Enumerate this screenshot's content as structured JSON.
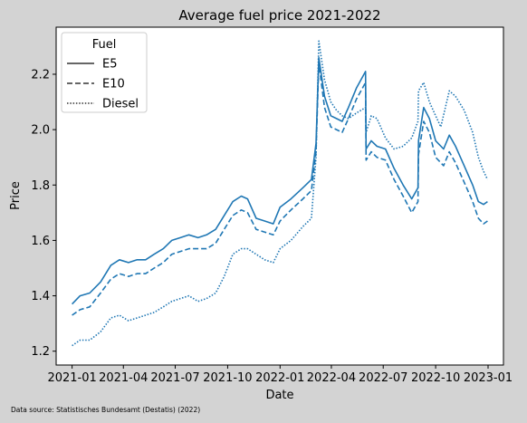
{
  "chart_data": {
    "type": "line",
    "title": "Average fuel price 2021-2022",
    "xlabel": "Date",
    "ylabel": "Price",
    "x_ticks": [
      "2021-01",
      "2021-04",
      "2021-07",
      "2021-10",
      "2022-01",
      "2022-04",
      "2022-07",
      "2022-10",
      "2023-01"
    ],
    "x_tick_dates": [
      "2021-01-01",
      "2021-04-01",
      "2021-07-01",
      "2021-10-01",
      "2022-01-01",
      "2022-04-01",
      "2022-07-01",
      "2022-10-01",
      "2023-01-01"
    ],
    "y_ticks": [
      "1.2",
      "1.4",
      "1.6",
      "1.8",
      "2.0",
      "2.2"
    ],
    "xlim": [
      "2020-12-04",
      "2023-01-28"
    ],
    "ylim": [
      1.15,
      2.37
    ],
    "grid": false,
    "legend": {
      "title": "Fuel",
      "placement": "top-left"
    },
    "series_color": "#1f77b4",
    "series": [
      {
        "name": "E5",
        "style": "solid",
        "points": [
          [
            "2021-01-01",
            1.37
          ],
          [
            "2021-01-15",
            1.4
          ],
          [
            "2021-02-01",
            1.41
          ],
          [
            "2021-02-20",
            1.45
          ],
          [
            "2021-03-10",
            1.51
          ],
          [
            "2021-03-25",
            1.53
          ],
          [
            "2021-04-10",
            1.52
          ],
          [
            "2021-04-25",
            1.53
          ],
          [
            "2021-05-10",
            1.53
          ],
          [
            "2021-05-25",
            1.55
          ],
          [
            "2021-06-10",
            1.57
          ],
          [
            "2021-06-25",
            1.6
          ],
          [
            "2021-07-10",
            1.61
          ],
          [
            "2021-07-25",
            1.62
          ],
          [
            "2021-08-10",
            1.61
          ],
          [
            "2021-08-25",
            1.62
          ],
          [
            "2021-09-10",
            1.64
          ],
          [
            "2021-09-25",
            1.69
          ],
          [
            "2021-10-10",
            1.74
          ],
          [
            "2021-10-25",
            1.76
          ],
          [
            "2021-11-05",
            1.75
          ],
          [
            "2021-11-20",
            1.68
          ],
          [
            "2021-12-05",
            1.67
          ],
          [
            "2021-12-20",
            1.66
          ],
          [
            "2022-01-01",
            1.72
          ],
          [
            "2022-01-20",
            1.75
          ],
          [
            "2022-02-10",
            1.79
          ],
          [
            "2022-02-25",
            1.82
          ],
          [
            "2022-03-05",
            1.95
          ],
          [
            "2022-03-10",
            2.26
          ],
          [
            "2022-03-20",
            2.12
          ],
          [
            "2022-03-31",
            2.05
          ],
          [
            "2022-04-10",
            2.04
          ],
          [
            "2022-04-20",
            2.03
          ],
          [
            "2022-05-01",
            2.08
          ],
          [
            "2022-05-15",
            2.15
          ],
          [
            "2022-05-31",
            2.21
          ],
          [
            "2022-06-01",
            1.93
          ],
          [
            "2022-06-10",
            1.96
          ],
          [
            "2022-06-20",
            1.94
          ],
          [
            "2022-07-05",
            1.93
          ],
          [
            "2022-07-20",
            1.86
          ],
          [
            "2022-08-05",
            1.8
          ],
          [
            "2022-08-20",
            1.75
          ],
          [
            "2022-08-31",
            1.79
          ],
          [
            "2022-09-01",
            1.96
          ],
          [
            "2022-09-10",
            2.08
          ],
          [
            "2022-09-20",
            2.04
          ],
          [
            "2022-10-01",
            1.96
          ],
          [
            "2022-10-15",
            1.93
          ],
          [
            "2022-10-25",
            1.98
          ],
          [
            "2022-11-05",
            1.94
          ],
          [
            "2022-11-20",
            1.87
          ],
          [
            "2022-12-05",
            1.8
          ],
          [
            "2022-12-15",
            1.74
          ],
          [
            "2022-12-24",
            1.73
          ],
          [
            "2022-12-31",
            1.74
          ]
        ]
      },
      {
        "name": "E10",
        "style": "dashed",
        "points": [
          [
            "2021-01-01",
            1.33
          ],
          [
            "2021-01-15",
            1.35
          ],
          [
            "2021-02-01",
            1.36
          ],
          [
            "2021-02-20",
            1.41
          ],
          [
            "2021-03-10",
            1.46
          ],
          [
            "2021-03-25",
            1.48
          ],
          [
            "2021-04-10",
            1.47
          ],
          [
            "2021-04-25",
            1.48
          ],
          [
            "2021-05-10",
            1.48
          ],
          [
            "2021-05-25",
            1.5
          ],
          [
            "2021-06-10",
            1.52
          ],
          [
            "2021-06-25",
            1.55
          ],
          [
            "2021-07-10",
            1.56
          ],
          [
            "2021-07-25",
            1.57
          ],
          [
            "2021-08-10",
            1.57
          ],
          [
            "2021-08-25",
            1.57
          ],
          [
            "2021-09-10",
            1.59
          ],
          [
            "2021-09-25",
            1.64
          ],
          [
            "2021-10-10",
            1.69
          ],
          [
            "2021-10-25",
            1.71
          ],
          [
            "2021-11-05",
            1.7
          ],
          [
            "2021-11-20",
            1.64
          ],
          [
            "2021-12-05",
            1.63
          ],
          [
            "2021-12-20",
            1.62
          ],
          [
            "2022-01-01",
            1.67
          ],
          [
            "2022-01-20",
            1.71
          ],
          [
            "2022-02-10",
            1.75
          ],
          [
            "2022-02-25",
            1.78
          ],
          [
            "2022-03-05",
            1.92
          ],
          [
            "2022-03-10",
            2.24
          ],
          [
            "2022-03-20",
            2.08
          ],
          [
            "2022-03-31",
            2.01
          ],
          [
            "2022-04-10",
            2.0
          ],
          [
            "2022-04-20",
            1.99
          ],
          [
            "2022-05-01",
            2.04
          ],
          [
            "2022-05-15",
            2.11
          ],
          [
            "2022-05-31",
            2.17
          ],
          [
            "2022-06-01",
            1.89
          ],
          [
            "2022-06-10",
            1.92
          ],
          [
            "2022-06-20",
            1.9
          ],
          [
            "2022-07-05",
            1.89
          ],
          [
            "2022-07-20",
            1.82
          ],
          [
            "2022-08-05",
            1.76
          ],
          [
            "2022-08-20",
            1.7
          ],
          [
            "2022-08-31",
            1.74
          ],
          [
            "2022-09-01",
            1.91
          ],
          [
            "2022-09-10",
            2.03
          ],
          [
            "2022-09-20",
            1.99
          ],
          [
            "2022-10-01",
            1.9
          ],
          [
            "2022-10-15",
            1.87
          ],
          [
            "2022-10-25",
            1.92
          ],
          [
            "2022-11-05",
            1.88
          ],
          [
            "2022-11-20",
            1.81
          ],
          [
            "2022-12-05",
            1.74
          ],
          [
            "2022-12-15",
            1.68
          ],
          [
            "2022-12-24",
            1.66
          ],
          [
            "2022-12-31",
            1.67
          ]
        ]
      },
      {
        "name": "Diesel",
        "style": "dotted",
        "points": [
          [
            "2021-01-01",
            1.22
          ],
          [
            "2021-01-15",
            1.24
          ],
          [
            "2021-02-01",
            1.24
          ],
          [
            "2021-02-20",
            1.27
          ],
          [
            "2021-03-10",
            1.32
          ],
          [
            "2021-03-25",
            1.33
          ],
          [
            "2021-04-10",
            1.31
          ],
          [
            "2021-04-25",
            1.32
          ],
          [
            "2021-05-10",
            1.33
          ],
          [
            "2021-05-25",
            1.34
          ],
          [
            "2021-06-10",
            1.36
          ],
          [
            "2021-06-25",
            1.38
          ],
          [
            "2021-07-10",
            1.39
          ],
          [
            "2021-07-25",
            1.4
          ],
          [
            "2021-08-10",
            1.38
          ],
          [
            "2021-08-25",
            1.39
          ],
          [
            "2021-09-10",
            1.41
          ],
          [
            "2021-09-25",
            1.47
          ],
          [
            "2021-10-10",
            1.55
          ],
          [
            "2021-10-25",
            1.57
          ],
          [
            "2021-11-05",
            1.57
          ],
          [
            "2021-11-20",
            1.55
          ],
          [
            "2021-12-05",
            1.53
          ],
          [
            "2021-12-20",
            1.52
          ],
          [
            "2022-01-01",
            1.57
          ],
          [
            "2022-01-20",
            1.6
          ],
          [
            "2022-02-10",
            1.65
          ],
          [
            "2022-02-25",
            1.68
          ],
          [
            "2022-03-05",
            1.9
          ],
          [
            "2022-03-10",
            2.32
          ],
          [
            "2022-03-20",
            2.18
          ],
          [
            "2022-03-31",
            2.1
          ],
          [
            "2022-04-10",
            2.07
          ],
          [
            "2022-04-20",
            2.05
          ],
          [
            "2022-05-01",
            2.04
          ],
          [
            "2022-05-15",
            2.06
          ],
          [
            "2022-05-31",
            2.08
          ],
          [
            "2022-06-01",
            1.99
          ],
          [
            "2022-06-10",
            2.05
          ],
          [
            "2022-06-20",
            2.04
          ],
          [
            "2022-07-05",
            1.97
          ],
          [
            "2022-07-20",
            1.93
          ],
          [
            "2022-08-05",
            1.94
          ],
          [
            "2022-08-20",
            1.97
          ],
          [
            "2022-08-31",
            2.03
          ],
          [
            "2022-09-01",
            2.14
          ],
          [
            "2022-09-10",
            2.17
          ],
          [
            "2022-09-20",
            2.1
          ],
          [
            "2022-10-01",
            2.05
          ],
          [
            "2022-10-10",
            2.01
          ],
          [
            "2022-10-25",
            2.14
          ],
          [
            "2022-11-05",
            2.12
          ],
          [
            "2022-11-20",
            2.07
          ],
          [
            "2022-12-05",
            1.99
          ],
          [
            "2022-12-15",
            1.9
          ],
          [
            "2022-12-24",
            1.85
          ],
          [
            "2022-12-31",
            1.82
          ]
        ]
      }
    ]
  },
  "source_note": "Data source: Statistisches Bundesamt (Destatis) (2022)"
}
